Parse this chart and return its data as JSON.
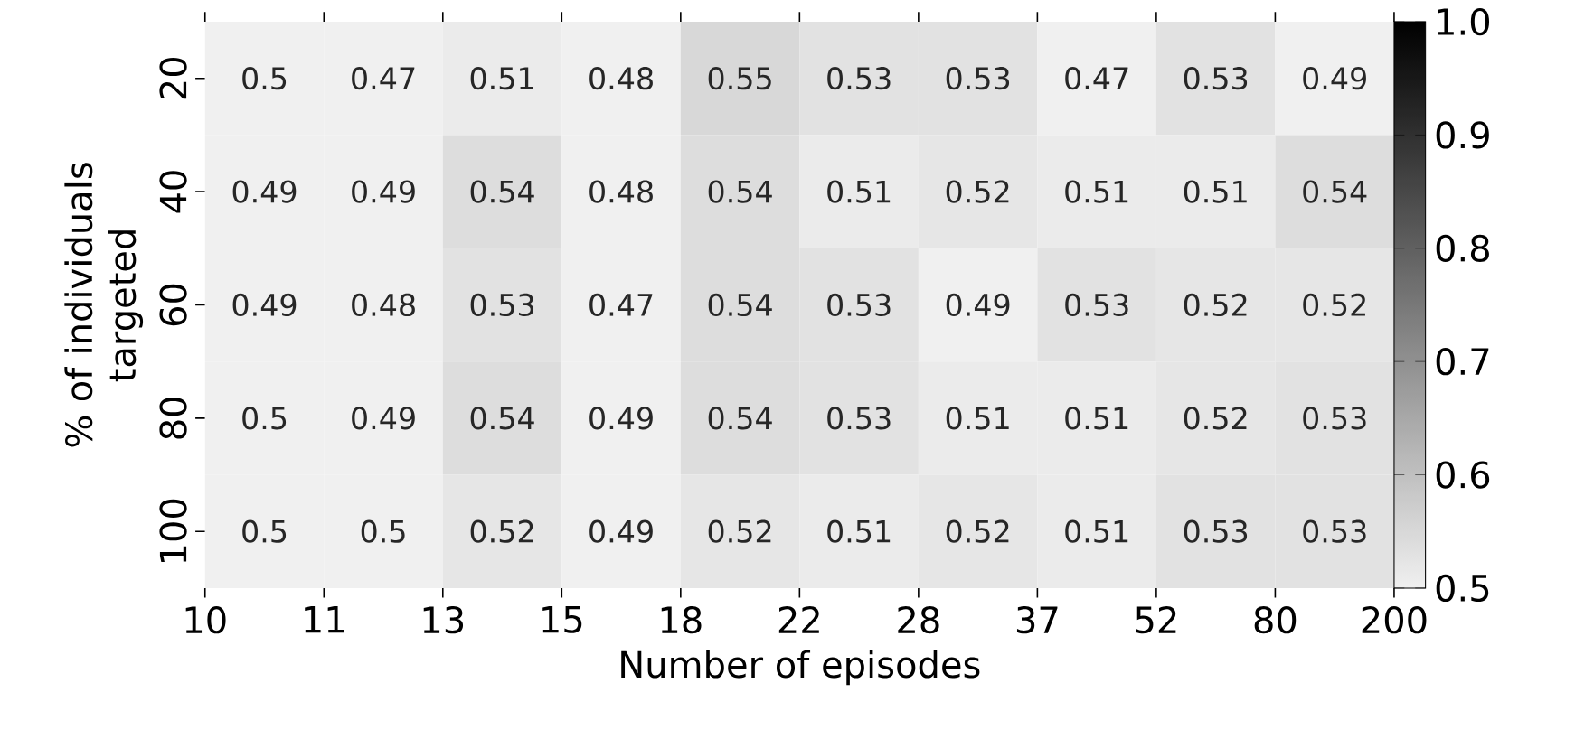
{
  "chart_data": {
    "type": "heatmap",
    "xlabel": "Number of episodes",
    "ylabel": "% of individuals targeted",
    "categories": [
      null,
      null,
      null,
      null,
      null,
      null,
      null,
      null,
      null,
      null
    ],
    "annotations": [
      "10",
      "11",
      "13",
      "15",
      "18",
      "22",
      "28",
      "37",
      "52",
      "80",
      "200"
    ],
    "y_categories": [
      "20",
      "40",
      "60",
      "80",
      "100"
    ],
    "cells": [
      [
        0.5,
        0.47,
        0.51,
        0.48,
        0.55,
        0.53,
        0.53,
        0.47,
        0.53,
        0.49
      ],
      [
        0.49,
        0.49,
        0.54,
        0.48,
        0.54,
        0.51,
        0.52,
        0.51,
        0.51,
        0.54
      ],
      [
        0.49,
        0.48,
        0.53,
        0.47,
        0.54,
        0.53,
        0.49,
        0.53,
        0.52,
        0.52
      ],
      [
        0.5,
        0.49,
        0.54,
        0.49,
        0.54,
        0.53,
        0.51,
        0.51,
        0.52,
        0.53
      ],
      [
        0.5,
        0.5,
        0.52,
        0.49,
        0.52,
        0.51,
        0.52,
        0.51,
        0.53,
        0.53
      ]
    ],
    "data_labels": true,
    "clim": [
      0.5,
      1.0
    ],
    "cticks": [
      0.5,
      0.6,
      0.7,
      0.8,
      0.9,
      {
        "value": 1.0,
        "label": "1.0"
      }
    ]
  }
}
